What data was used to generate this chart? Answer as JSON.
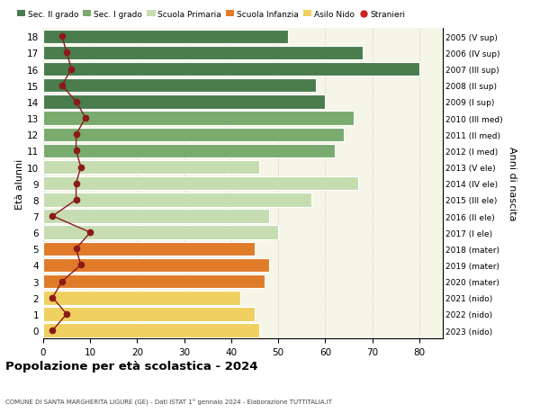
{
  "ages": [
    18,
    17,
    16,
    15,
    14,
    13,
    12,
    11,
    10,
    9,
    8,
    7,
    6,
    5,
    4,
    3,
    2,
    1,
    0
  ],
  "bar_values": [
    52,
    68,
    80,
    58,
    60,
    66,
    64,
    62,
    46,
    67,
    57,
    48,
    50,
    45,
    48,
    47,
    42,
    45,
    46
  ],
  "stranieri": [
    4,
    5,
    6,
    4,
    7,
    9,
    7,
    7,
    8,
    7,
    7,
    2,
    10,
    7,
    8,
    4,
    2,
    5,
    2
  ],
  "right_labels": [
    "2005 (V sup)",
    "2006 (IV sup)",
    "2007 (III sup)",
    "2008 (II sup)",
    "2009 (I sup)",
    "2010 (III med)",
    "2011 (II med)",
    "2012 (I med)",
    "2013 (V ele)",
    "2014 (IV ele)",
    "2015 (III ele)",
    "2016 (II ele)",
    "2017 (I ele)",
    "2018 (mater)",
    "2019 (mater)",
    "2020 (mater)",
    "2021 (nido)",
    "2022 (nido)",
    "2023 (nido)"
  ],
  "bar_colors_by_age": {
    "18": "#4a7c4e",
    "17": "#4a7c4e",
    "16": "#4a7c4e",
    "15": "#4a7c4e",
    "14": "#4a7c4e",
    "13": "#7aab6e",
    "12": "#7aab6e",
    "11": "#7aab6e",
    "10": "#c5ddb0",
    "9": "#c5ddb0",
    "8": "#c5ddb0",
    "7": "#c5ddb0",
    "6": "#c5ddb0",
    "5": "#e07b2a",
    "4": "#e07b2a",
    "3": "#e07b2a",
    "2": "#f0d060",
    "1": "#f0d060",
    "0": "#f0d060"
  },
  "stranieri_color": "#8b1a1a",
  "ylabel_left": "Età alunni",
  "ylabel_right": "Anni di nascita",
  "title": "Popolazione per età scolastica - 2024",
  "subtitle": "COMUNE DI SANTA MARGHERITA LIGURE (GE) - Dati ISTAT 1° gennaio 2024 - Elaborazione TUTTITALIA.IT",
  "xlim": [
    0,
    85
  ],
  "xticks": [
    0,
    10,
    20,
    30,
    40,
    50,
    60,
    70,
    80
  ],
  "legend_labels": [
    "Sec. II grado",
    "Sec. I grado",
    "Scuola Primaria",
    "Scuola Infanzia",
    "Asilo Nido",
    "Stranieri"
  ],
  "legend_colors": [
    "#4a7c4e",
    "#7aab6e",
    "#c5ddb0",
    "#e07b2a",
    "#f0d060",
    "#cc2222"
  ],
  "plot_bg": "#f5f5e8",
  "fig_bg": "#ffffff",
  "grid_color": "#cccccc"
}
